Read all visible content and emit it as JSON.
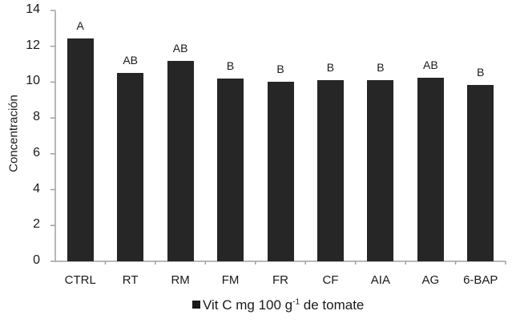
{
  "chart_data": {
    "type": "bar",
    "title": "",
    "xlabel": "",
    "ylabel": "Concentración",
    "ylim": [
      0,
      14
    ],
    "yticks": [
      0,
      2,
      4,
      6,
      8,
      10,
      12,
      14
    ],
    "grid": false,
    "legend_position": "bottom",
    "categories": [
      "CTRL",
      "RT",
      "RM",
      "FM",
      "FR",
      "CF",
      "AIA",
      "AG",
      "6-BAP"
    ],
    "series": [
      {
        "name": "Vit C mg 100 g-1 de tomate",
        "values": [
          12.43,
          10.5,
          11.18,
          10.2,
          10.02,
          10.1,
          10.1,
          10.24,
          9.84
        ],
        "significance": [
          "A",
          "AB",
          "AB",
          "B",
          "B",
          "B",
          "B",
          "AB",
          "B"
        ]
      }
    ],
    "colors": {
      "bar": "#262626",
      "axis": "#a0a0a0"
    }
  },
  "legend": {
    "text_main": "Vit C mg 100 g",
    "superscript": "-1",
    "text_tail": " de tomate"
  }
}
